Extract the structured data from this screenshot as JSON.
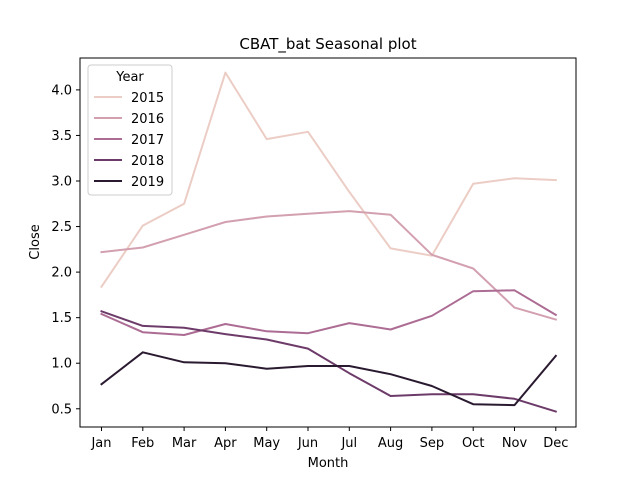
{
  "chart_data": {
    "type": "line",
    "title": "CBAT_bat Seasonal plot",
    "xlabel": "Month",
    "ylabel": "Close",
    "categories": [
      "Jan",
      "Feb",
      "Mar",
      "Apr",
      "May",
      "Jun",
      "Jul",
      "Aug",
      "Sep",
      "Oct",
      "Nov",
      "Dec"
    ],
    "ylim": [
      0.3,
      4.35
    ],
    "yticks": [
      0.5,
      1.0,
      1.5,
      2.0,
      2.5,
      3.0,
      3.5,
      4.0
    ],
    "yticks_labels": [
      "0.5",
      "1.0",
      "1.5",
      "2.0",
      "2.5",
      "3.0",
      "3.5",
      "4.0"
    ],
    "grid": false,
    "legend": {
      "title": "Year",
      "position": "top-left"
    },
    "series": [
      {
        "name": "2015",
        "color": "#eccdc5",
        "values": [
          1.84,
          2.51,
          2.75,
          4.19,
          3.46,
          3.54,
          2.88,
          2.26,
          2.18,
          2.97,
          3.03,
          3.01
        ]
      },
      {
        "name": "2016",
        "color": "#d3a0b0",
        "values": [
          2.22,
          2.27,
          2.41,
          2.55,
          2.61,
          2.64,
          2.67,
          2.63,
          2.19,
          2.04,
          1.61,
          1.48
        ]
      },
      {
        "name": "2017",
        "color": "#ac6c93",
        "values": [
          1.54,
          1.34,
          1.31,
          1.43,
          1.35,
          1.33,
          1.44,
          1.37,
          1.52,
          1.79,
          1.8,
          1.53
        ]
      },
      {
        "name": "2018",
        "color": "#6d3b69",
        "values": [
          1.57,
          1.41,
          1.39,
          1.32,
          1.26,
          1.16,
          0.89,
          0.64,
          0.66,
          0.66,
          0.61,
          0.47
        ]
      },
      {
        "name": "2019",
        "color": "#2a1a30",
        "values": [
          0.77,
          1.12,
          1.01,
          1.0,
          0.94,
          0.97,
          0.97,
          0.88,
          0.75,
          0.55,
          0.54,
          1.08
        ]
      }
    ]
  }
}
